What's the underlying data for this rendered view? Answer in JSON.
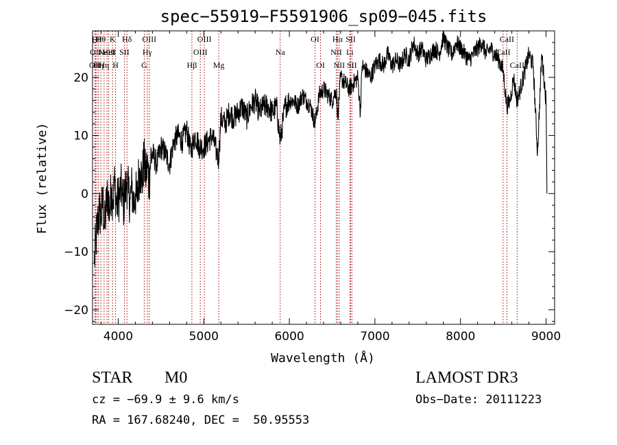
{
  "chart_data": {
    "type": "line",
    "title": "spec−55919−F5591906_sp09−045.fits",
    "xlabel": "Wavelength (Å)",
    "ylabel": "Flux (relative)",
    "xlim": [
      3700,
      9100
    ],
    "ylim": [
      -22.5,
      28
    ],
    "x_ticks": [
      4000,
      5000,
      6000,
      7000,
      8000,
      9000
    ],
    "x_tick_labels": [
      "4000",
      "5000",
      "6000",
      "7000",
      "8000",
      "9000"
    ],
    "y_ticks": [
      -20,
      -10,
      0,
      10,
      20
    ],
    "y_tick_labels": [
      "−20",
      "−10",
      "0",
      "10",
      "20"
    ],
    "series": [
      {
        "name": "spectrum",
        "x": [
          3720,
          3740,
          3760,
          3780,
          3800,
          3820,
          3840,
          3860,
          3880,
          3900,
          3920,
          3940,
          3960,
          3980,
          4000,
          4020,
          4040,
          4060,
          4080,
          4100,
          4120,
          4140,
          4160,
          4180,
          4200,
          4220,
          4240,
          4260,
          4280,
          4300,
          4320,
          4340,
          4360,
          4380,
          4400,
          4450,
          4500,
          4550,
          4600,
          4650,
          4700,
          4750,
          4800,
          4850,
          4861,
          4900,
          4950,
          5000,
          5050,
          5100,
          5150,
          5175,
          5200,
          5250,
          5300,
          5350,
          5400,
          5450,
          5500,
          5550,
          5600,
          5650,
          5700,
          5750,
          5800,
          5850,
          5893,
          5950,
          6000,
          6050,
          6100,
          6150,
          6200,
          6250,
          6300,
          6350,
          6400,
          6450,
          6500,
          6550,
          6563,
          6600,
          6650,
          6700,
          6750,
          6800,
          6830,
          6850,
          6900,
          6950,
          7000,
          7050,
          7100,
          7150,
          7200,
          7250,
          7300,
          7350,
          7400,
          7450,
          7500,
          7550,
          7600,
          7650,
          7700,
          7750,
          7800,
          7850,
          7900,
          7950,
          8000,
          8050,
          8100,
          8150,
          8200,
          8250,
          8300,
          8350,
          8400,
          8450,
          8500,
          8540,
          8580,
          8620,
          8660,
          8700,
          8750,
          8800,
          8850,
          8900,
          8950,
          9000,
          9010
        ],
        "y": [
          -12,
          -8,
          -5,
          -3,
          -4,
          -1,
          -6,
          -2,
          0,
          -3,
          1,
          -1,
          2,
          -2,
          -1,
          0,
          1,
          -2,
          0,
          2,
          0,
          -1,
          1,
          -2,
          0,
          -1,
          3,
          4,
          2,
          6,
          3,
          5,
          2,
          6,
          7,
          5,
          8,
          7,
          5,
          9,
          10,
          9,
          11,
          7,
          8,
          10,
          8,
          8,
          9,
          10,
          7,
          6,
          13,
          12,
          14,
          13,
          14,
          15,
          13,
          15,
          16,
          14,
          15,
          15,
          14,
          15,
          9,
          15,
          16,
          16,
          15,
          17,
          16,
          15,
          12,
          17,
          18,
          17,
          16,
          18,
          13,
          20,
          19,
          18,
          19,
          20,
          14,
          22,
          21,
          20,
          22,
          23,
          22,
          24,
          22,
          23,
          22,
          24,
          23,
          26,
          24,
          25,
          23,
          24,
          25,
          24,
          27,
          25,
          24,
          26,
          25,
          24,
          23,
          24,
          25,
          26,
          24,
          25,
          24,
          23,
          21,
          15,
          16,
          20,
          16,
          18,
          21,
          24,
          22,
          7,
          24,
          16,
          0
        ]
      }
    ],
    "lines": [
      {
        "x": 3727,
        "label": "OII",
        "row": 2
      },
      {
        "x": 3735,
        "label": "OII",
        "row": 1
      },
      {
        "x": 3750,
        "label": "Hθ",
        "row": 0
      },
      {
        "x": 3770,
        "label": "Hη",
        "row": 2
      },
      {
        "x": 3797,
        "label": "Hθ",
        "row": 0
      },
      {
        "x": 3835,
        "label": "Hη",
        "row": 2
      },
      {
        "x": 3869,
        "label": "NeIII",
        "row": 1
      },
      {
        "x": 3889,
        "label": "HeI",
        "row": 1
      },
      {
        "x": 3934,
        "label": "K",
        "row": 0
      },
      {
        "x": 3969,
        "label": "H",
        "row": 2
      },
      {
        "x": 4072,
        "label": "SII",
        "row": 1
      },
      {
        "x": 4102,
        "label": "Hδ",
        "row": 0
      },
      {
        "x": 4304,
        "label": "G",
        "row": 2
      },
      {
        "x": 4340,
        "label": "Hγ",
        "row": 1
      },
      {
        "x": 4363,
        "label": "OIII",
        "row": 0
      },
      {
        "x": 4861,
        "label": "Hβ",
        "row": 2
      },
      {
        "x": 4959,
        "label": "OIII",
        "row": 1
      },
      {
        "x": 5007,
        "label": "OIII",
        "row": 0
      },
      {
        "x": 5175,
        "label": "Mg",
        "row": 2
      },
      {
        "x": 5893,
        "label": "Na",
        "row": 1
      },
      {
        "x": 6300,
        "label": "OI",
        "row": 0
      },
      {
        "x": 6364,
        "label": "OI",
        "row": 2
      },
      {
        "x": 6548,
        "label": "NII",
        "row": 1
      },
      {
        "x": 6563,
        "label": "Hα",
        "row": 0
      },
      {
        "x": 6583,
        "label": "NII",
        "row": 2
      },
      {
        "x": 6707,
        "label": "Li",
        "row": 1
      },
      {
        "x": 6716,
        "label": "SII",
        "row": 0
      },
      {
        "x": 6731,
        "label": "SII",
        "row": 2
      },
      {
        "x": 8498,
        "label": "CaII",
        "row": 1
      },
      {
        "x": 8542,
        "label": "CaII",
        "row": 0
      },
      {
        "x": 8662,
        "label": "CaII",
        "row": 2
      }
    ]
  },
  "info": {
    "class": "STAR",
    "subclass": "M0",
    "survey": "LAMOST DR3",
    "cz": "cz = −69.9 ± 9.6 km/s",
    "obs_date": "Obs−Date: 20111223",
    "radec": "RA = 167.68240, DEC =  50.95553"
  }
}
